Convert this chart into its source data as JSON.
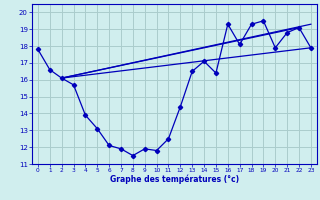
{
  "xlabel": "Graphe des températures (°c)",
  "bg_color": "#d0eeee",
  "line_color": "#0000bb",
  "grid_color": "#aacccc",
  "xlim": [
    -0.5,
    23.5
  ],
  "ylim": [
    11,
    20.5
  ],
  "xticks": [
    0,
    1,
    2,
    3,
    4,
    5,
    6,
    7,
    8,
    9,
    10,
    11,
    12,
    13,
    14,
    15,
    16,
    17,
    18,
    19,
    20,
    21,
    22,
    23
  ],
  "yticks": [
    11,
    12,
    13,
    14,
    15,
    16,
    17,
    18,
    19,
    20
  ],
  "main_x": [
    0,
    1,
    2,
    3,
    4,
    5,
    6,
    7,
    8,
    9,
    10,
    11,
    12,
    13,
    14,
    15,
    16,
    17,
    18,
    19,
    20,
    21,
    22,
    23
  ],
  "main_y": [
    17.8,
    16.6,
    16.1,
    15.7,
    13.9,
    13.1,
    12.1,
    11.9,
    11.5,
    11.9,
    11.8,
    12.5,
    14.4,
    16.5,
    17.1,
    16.4,
    19.3,
    18.1,
    19.3,
    19.5,
    17.9,
    18.8,
    19.1,
    17.9
  ],
  "line1_x": [
    2,
    23
  ],
  "line1_y": [
    16.1,
    17.9
  ],
  "line2_x": [
    2,
    23
  ],
  "line2_y": [
    16.1,
    19.3
  ],
  "line3_x": [
    2,
    22
  ],
  "line3_y": [
    16.1,
    19.1
  ],
  "figsize": [
    3.2,
    2.0
  ],
  "dpi": 100
}
